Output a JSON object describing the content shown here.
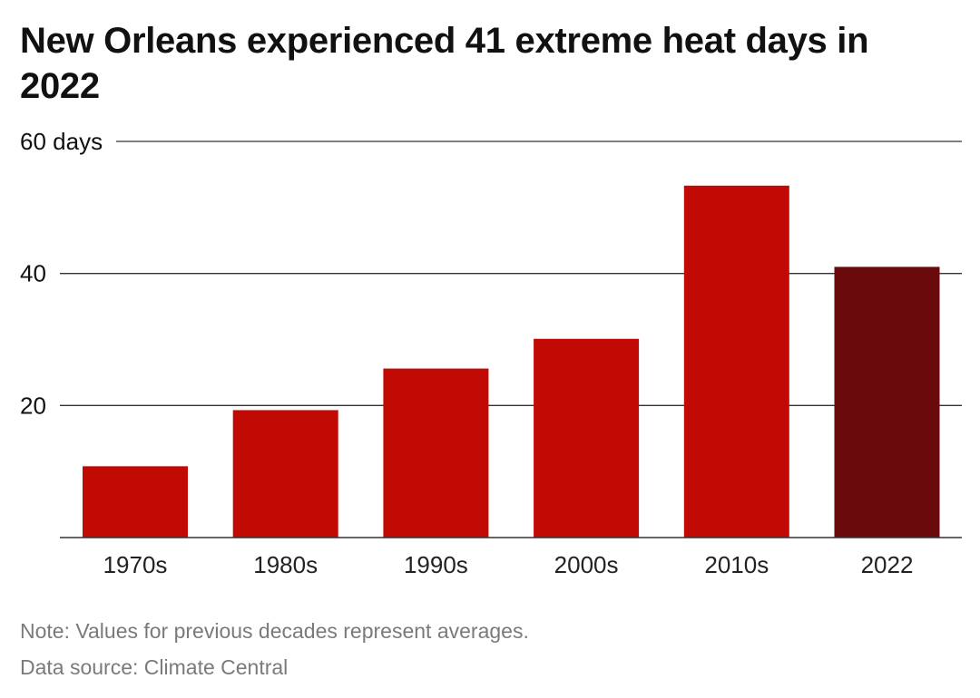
{
  "title": "New Orleans experienced 41 extreme heat days in 2022",
  "chart_data": {
    "type": "bar",
    "title": "New Orleans experienced 41 extreme heat days in 2022",
    "categories": [
      "1970s",
      "1980s",
      "1990s",
      "2000s",
      "2010s",
      "2022"
    ],
    "values": [
      10.8,
      19.3,
      25.6,
      30.1,
      53.3,
      41.0
    ],
    "bar_colors": [
      "#c20a05",
      "#c20a05",
      "#c20a05",
      "#c20a05",
      "#c20a05",
      "#6b0a0c"
    ],
    "ylim": [
      0,
      60
    ],
    "yticks": [
      {
        "value": 20,
        "label": "20"
      },
      {
        "value": 40,
        "label": "40"
      },
      {
        "value": 60,
        "label": "60 days"
      }
    ],
    "xlabel": "",
    "ylabel": "",
    "grid": true,
    "gridline_color": "#333333"
  },
  "notes": {
    "note": "Note: Values for previous decades represent averages.",
    "source": "Data source: Climate Central"
  }
}
